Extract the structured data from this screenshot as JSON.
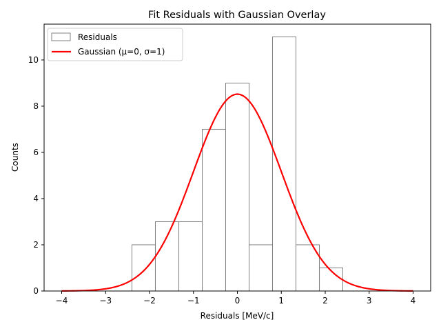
{
  "chart_data": {
    "type": "histogram",
    "title": "Fit Residuals with Gaussian Overlay",
    "xlabel": "Residuals [MeV/c]",
    "ylabel": "Counts",
    "xlim": [
      -4.4,
      4.4
    ],
    "ylim": [
      0,
      11.55
    ],
    "xticks": [
      -4,
      -3,
      -2,
      -1,
      0,
      1,
      2,
      3,
      4
    ],
    "xtick_labels": [
      "−4",
      "−3",
      "−2",
      "−1",
      "0",
      "1",
      "2",
      "3",
      "4"
    ],
    "yticks": [
      0,
      2,
      4,
      6,
      8,
      10
    ],
    "ytick_labels": [
      "0",
      "2",
      "4",
      "6",
      "8",
      "10"
    ],
    "grid": false,
    "legend_position": "top-left",
    "histogram": {
      "name": "Residuals",
      "bin_edges": [
        -2.4,
        -1.867,
        -1.333,
        -0.8,
        -0.267,
        0.267,
        0.8,
        1.333,
        1.867,
        2.4
      ],
      "counts": [
        2,
        3,
        3,
        7,
        9,
        2,
        11,
        2,
        1
      ],
      "color": "#808080"
    },
    "curve": {
      "name": "Gaussian (μ=0, σ=1)",
      "mu": 0,
      "sigma": 1,
      "amplitude": 8.52,
      "x_range": [
        -4,
        4
      ],
      "color": "#ff0000"
    }
  }
}
